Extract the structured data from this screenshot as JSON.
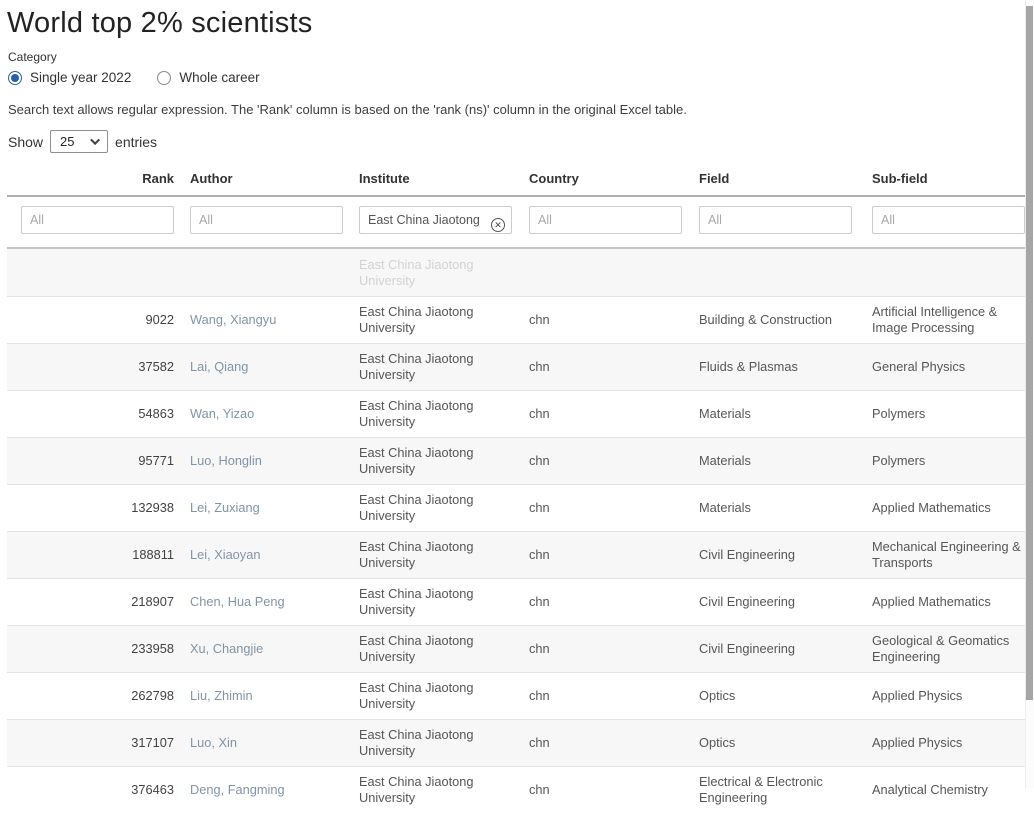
{
  "page": {
    "title": "World top 2% scientists"
  },
  "category": {
    "label": "Category",
    "options": [
      {
        "label": "Single year 2022",
        "selected": true
      },
      {
        "label": "Whole career",
        "selected": false
      }
    ]
  },
  "note": "Search text allows regular expression. The 'Rank' column is based on the 'rank (ns)' column in the original Excel table.",
  "show_entries": {
    "prefix": "Show",
    "selected": "25",
    "suffix": "entries"
  },
  "table": {
    "columns": [
      "Rank",
      "Author",
      "Institute",
      "Country",
      "Field",
      "Sub-field"
    ],
    "filters": [
      {
        "placeholder": "All",
        "value": ""
      },
      {
        "placeholder": "All",
        "value": ""
      },
      {
        "placeholder": "All",
        "value": "East China Jiaotong",
        "has_clear": true
      },
      {
        "placeholder": "All",
        "value": ""
      },
      {
        "placeholder": "All",
        "value": ""
      },
      {
        "placeholder": "All",
        "value": ""
      }
    ],
    "ghost_row": {
      "institute": "East China Jiaotong University"
    },
    "rows": [
      {
        "rank": "9022",
        "author": "Wang, Xiangyu",
        "institute": "East China Jiaotong University",
        "country": "chn",
        "field": "Building & Construction",
        "subfield": "Artificial Intelligence & Image Processing"
      },
      {
        "rank": "37582",
        "author": "Lai, Qiang",
        "institute": "East China Jiaotong University",
        "country": "chn",
        "field": "Fluids & Plasmas",
        "subfield": "General Physics"
      },
      {
        "rank": "54863",
        "author": "Wan, Yizao",
        "institute": "East China Jiaotong University",
        "country": "chn",
        "field": "Materials",
        "subfield": "Polymers"
      },
      {
        "rank": "95771",
        "author": "Luo, Honglin",
        "institute": "East China Jiaotong University",
        "country": "chn",
        "field": "Materials",
        "subfield": "Polymers"
      },
      {
        "rank": "132938",
        "author": "Lei, Zuxiang",
        "institute": "East China Jiaotong University",
        "country": "chn",
        "field": "Materials",
        "subfield": "Applied Mathematics"
      },
      {
        "rank": "188811",
        "author": "Lei, Xiaoyan",
        "institute": "East China Jiaotong University",
        "country": "chn",
        "field": "Civil Engineering",
        "subfield": "Mechanical Engineering & Transports"
      },
      {
        "rank": "218907",
        "author": "Chen, Hua Peng",
        "institute": "East China Jiaotong University",
        "country": "chn",
        "field": "Civil Engineering",
        "subfield": "Applied Mathematics"
      },
      {
        "rank": "233958",
        "author": "Xu, Changjie",
        "institute": "East China Jiaotong University",
        "country": "chn",
        "field": "Civil Engineering",
        "subfield": "Geological & Geomatics Engineering"
      },
      {
        "rank": "262798",
        "author": "Liu, Zhimin",
        "institute": "East China Jiaotong University",
        "country": "chn",
        "field": "Optics",
        "subfield": "Applied Physics"
      },
      {
        "rank": "317107",
        "author": "Luo, Xin",
        "institute": "East China Jiaotong University",
        "country": "chn",
        "field": "Optics",
        "subfield": "Applied Physics"
      },
      {
        "rank": "376463",
        "author": "Deng, Fangming",
        "institute": "East China Jiaotong University",
        "country": "chn",
        "field": "Electrical & Electronic Engineering",
        "subfield": "Analytical Chemistry"
      }
    ]
  },
  "colors": {
    "radio_accent": "#2b5fa5",
    "author_link": "#8095a8",
    "header_text": "#333333",
    "row_stripe": "#f7f7f7",
    "scrollbar_thumb": "#a6a6a6"
  }
}
